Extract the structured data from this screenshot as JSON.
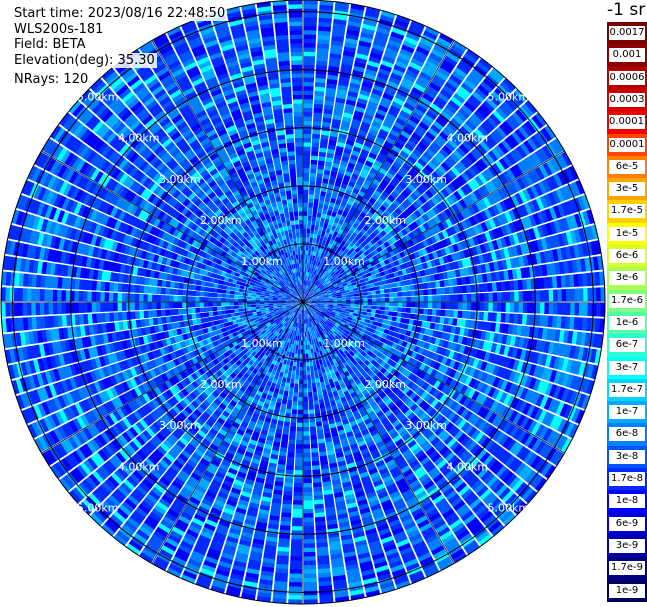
{
  "info": {
    "start_time": "Start time: 2023/08/16 22:48:50",
    "instrument": "WLS200s-181",
    "field": "Field: BETA",
    "elevation": "Elevation(deg): 35.30",
    "nrays": "NRays: 120"
  },
  "colorbar": {
    "unit": "-1 sr",
    "labels": [
      "0.0017",
      "0.001",
      "0.0006",
      "0.0003",
      "0.00017",
      "0.0001",
      "6e-5",
      "3e-5",
      "1.7e-5",
      "1e-5",
      "6e-6",
      "3e-6",
      "1.7e-6",
      "1e-6",
      "6e-7",
      "3e-7",
      "1.7e-7",
      "1e-7",
      "6e-8",
      "3e-8",
      "1.7e-8",
      "1e-8",
      "6e-9",
      "3e-9",
      "1.7e-9",
      "1e-9"
    ],
    "colors": [
      "#7a0000",
      "#8b0000",
      "#b00000",
      "#d00000",
      "#f00000",
      "#ff4500",
      "#ff7f00",
      "#ffa500",
      "#ffd000",
      "#ffff00",
      "#d4ff2a",
      "#aaff55",
      "#7fff7f",
      "#55ffaa",
      "#2affd4",
      "#00ffff",
      "#00d4ff",
      "#00aaff",
      "#007fff",
      "#0055ff",
      "#002aff",
      "#0000ff",
      "#0000d4",
      "#0000aa",
      "#00007f",
      "#000060"
    ]
  },
  "ring_labels": [
    "1.00km",
    "2.00km",
    "3.00km",
    "4.00km",
    "5.00km"
  ],
  "chart_data": {
    "type": "heatmap",
    "title": "",
    "projection": "ppi-polar",
    "n_rays": 120,
    "ranges_km": [
      1,
      2,
      3,
      4,
      5
    ],
    "max_range_km": 5.2,
    "spoke_step_deg": 30,
    "value_scale": "log",
    "value_range": [
      1e-09,
      0.0017
    ],
    "dominant_levels": [
      "1e-8",
      "1.7e-8",
      "3e-8",
      "6e-8",
      "1e-7",
      "1.7e-7",
      "3e-7"
    ]
  }
}
